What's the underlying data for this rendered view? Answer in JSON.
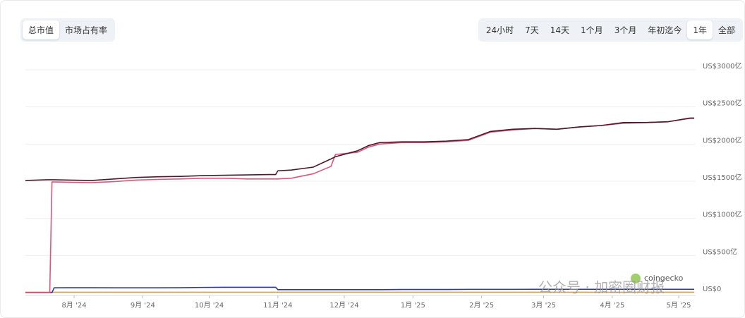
{
  "toggles": {
    "items": [
      "总市值",
      "市场占有率"
    ],
    "selected": 0
  },
  "ranges": {
    "items": [
      "24小时",
      "7天",
      "14天",
      "1个月",
      "3个月",
      "年初迄今",
      "1年",
      "全部"
    ],
    "selected": 6
  },
  "watermark": {
    "brand": "coingecko",
    "text": "公众号 · 加密圈财报"
  },
  "chart_data": {
    "type": "line",
    "grid": true,
    "x": [
      0,
      10,
      11,
      12,
      13,
      20,
      30,
      40,
      50,
      60,
      70,
      80,
      90,
      100,
      110,
      113,
      114,
      120,
      130,
      138,
      140,
      150,
      155,
      160,
      170,
      180,
      190,
      200,
      210,
      220,
      230,
      240,
      250,
      260,
      270,
      280,
      290,
      300,
      302
    ],
    "xlim": [
      0,
      302
    ],
    "xticks": [
      {
        "value": 22,
        "label": "8月 '24"
      },
      {
        "value": 53,
        "label": "9月 '24"
      },
      {
        "value": 83,
        "label": "10月 '24"
      },
      {
        "value": 114,
        "label": "11月 '24"
      },
      {
        "value": 144,
        "label": "12月 '24"
      },
      {
        "value": 175,
        "label": "1月 '25"
      },
      {
        "value": 206,
        "label": "2月 '25"
      },
      {
        "value": 234,
        "label": "3月 '25"
      },
      {
        "value": 265,
        "label": "4月 '25"
      },
      {
        "value": 295,
        "label": "5月 '25"
      }
    ],
    "ylim": [
      0,
      3000
    ],
    "yticks": [
      {
        "value": 0,
        "label": "US$0"
      },
      {
        "value": 500,
        "label": "US$500亿"
      },
      {
        "value": 1000,
        "label": "US$1000亿"
      },
      {
        "value": 1500,
        "label": "US$1500亿"
      },
      {
        "value": 2000,
        "label": "US$2000亿"
      },
      {
        "value": 2500,
        "label": "US$2500亿"
      },
      {
        "value": 3000,
        "label": "US$3000亿"
      }
    ],
    "series": [
      {
        "color": "#4a1a2a",
        "values": [
          1510,
          1520,
          1520,
          1520,
          1520,
          1515,
          1510,
          1530,
          1550,
          1560,
          1565,
          1575,
          1580,
          1585,
          1590,
          1590,
          1640,
          1650,
          1690,
          1800,
          1830,
          1910,
          1980,
          2020,
          2030,
          2030,
          2040,
          2060,
          2170,
          2200,
          2210,
          2200,
          2230,
          2250,
          2290,
          2290,
          2300,
          2350,
          2350
        ]
      },
      {
        "color": "#e0567a",
        "values": [
          0,
          0,
          0,
          1490,
          1490,
          1485,
          1480,
          1495,
          1515,
          1525,
          1530,
          1540,
          1540,
          1530,
          1530,
          1530,
          1530,
          1540,
          1600,
          1700,
          1860,
          1890,
          1960,
          2000,
          2020,
          2020,
          2030,
          2050,
          2160,
          2190,
          2210,
          2200,
          2230,
          2250,
          2280,
          2290,
          2300,
          2345,
          2345
        ]
      },
      {
        "color": "#2a3a9a",
        "values": [
          0,
          0,
          0,
          0,
          65,
          66,
          66,
          65,
          65,
          65,
          66,
          70,
          72,
          72,
          72,
          72,
          40,
          40,
          40,
          40,
          40,
          40,
          40,
          40,
          42,
          42,
          42,
          44,
          44,
          44,
          45,
          45,
          45,
          45,
          45,
          45,
          45,
          45,
          45
        ]
      },
      {
        "color": "#d4a050",
        "values": [
          5,
          5,
          5,
          5,
          5,
          5,
          5,
          5,
          5,
          5,
          5,
          5,
          5,
          5,
          5,
          5,
          5,
          5,
          5,
          5,
          5,
          5,
          5,
          5,
          5,
          5,
          5,
          5,
          5,
          5,
          5,
          5,
          5,
          5,
          5,
          5,
          5,
          5,
          5
        ]
      }
    ]
  }
}
